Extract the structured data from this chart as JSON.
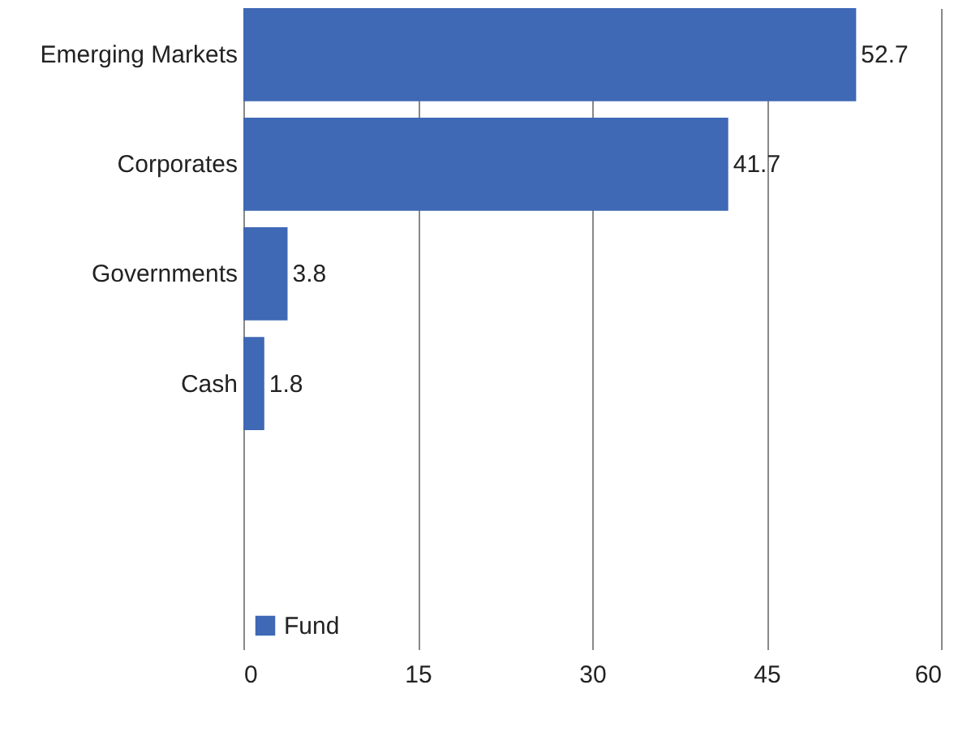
{
  "chart_data": {
    "type": "bar",
    "orientation": "horizontal",
    "categories": [
      "Emerging Markets",
      "Corporates",
      "Governments",
      "Cash"
    ],
    "series": [
      {
        "name": "Fund",
        "color": "#3f68b5",
        "values": [
          52.7,
          41.7,
          3.8,
          1.8
        ]
      }
    ],
    "xlim": [
      0,
      60
    ],
    "xticks": [
      0,
      15,
      30,
      45,
      60
    ],
    "grid": "x",
    "legend": "bottom left",
    "data_labels": true
  }
}
